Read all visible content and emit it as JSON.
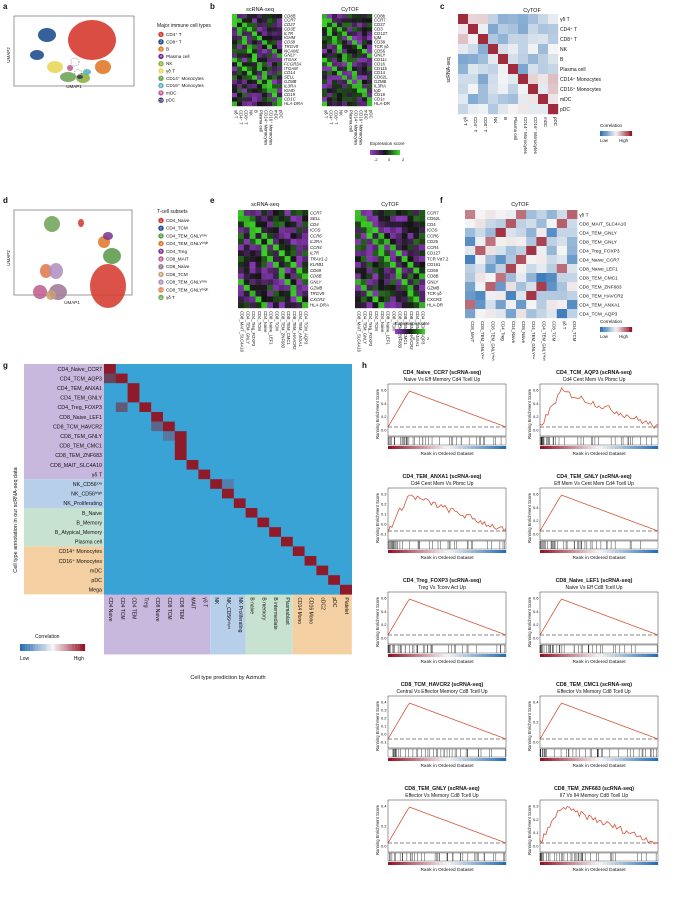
{
  "panels": {
    "a": {
      "letter": "a",
      "legend_title": "Major immune cell types",
      "items": [
        "CD4⁺ T",
        "CD8⁺ T",
        "B",
        "Plasma cell",
        "NK",
        "γδ T",
        "CD14⁺ Monocytes",
        "CD16⁺ Monocytes",
        "mDC",
        "pDC"
      ],
      "colors": [
        "#d63a2f",
        "#1f4f8f",
        "#e0792a",
        "#7a2f8a",
        "#8fb23c",
        "#e8d85a",
        "#6fa55a",
        "#5ab0c0",
        "#c06090",
        "#3a3a7a"
      ],
      "xaxis": "UMAP1",
      "yaxis": "UMAP2"
    },
    "b": {
      "letter": "b",
      "title_left": "scRNA-seq",
      "title_right": "CyTOF",
      "rna_markers": [
        "CD8B",
        "CCR7",
        "CD27",
        "CD3E",
        "IL7R",
        "IGHM",
        "CD38",
        "TRGV9",
        "NCAM1",
        "GNLY",
        "ITGAX",
        "FCGR3A",
        "ITGAM",
        "CD14",
        "SELL",
        "GZMB",
        "IL3RA",
        "IGHD",
        "CD19",
        "CD1C",
        "HLA-DRA"
      ],
      "cytof_markers": [
        "CD8b",
        "CCR7",
        "CD27",
        "CD3",
        "CD127",
        "IgM",
        "CD38",
        "TCR γδ",
        "CD56",
        "GNLY",
        "CD11c",
        "CD16",
        "CD11b",
        "CD14",
        "CD62L",
        "GZMB",
        "IL3RA",
        "IgD",
        "CD19",
        "CD1c",
        "HLA-DR"
      ],
      "columns": [
        "γδ T",
        "CD4⁺ T",
        "CD8⁺ T",
        "NK",
        "B",
        "Plasma cell",
        "CD14⁺ Monocytes",
        "CD16⁺ Monocytes",
        "mDC",
        "pDC"
      ],
      "scale_title": "Expression score",
      "scale_ticks": [
        "2",
        "0",
        "-2"
      ]
    },
    "c": {
      "letter": "c",
      "top": "CyTOF",
      "side": "scRNA-seq",
      "rows": [
        "γδ T",
        "CD4⁺ T",
        "CD8⁺ T",
        "NK",
        "B",
        "Plasma cell",
        "CD14⁺ Monocytes",
        "CD16⁺ Monocytes",
        "mDC",
        "pDC"
      ],
      "cols": [
        "γδ T",
        "CD4⁺ T",
        "CD8⁺ T",
        "NK",
        "B",
        "Plasma cell",
        "CD14⁺ Monocytes",
        "CD16⁺ Monocytes",
        "mDC",
        "pDC"
      ],
      "scale_title": "Correlation",
      "low": "Low",
      "high": "High"
    },
    "d": {
      "letter": "d",
      "legend_title": "T-cell subsets",
      "items": [
        "CD4_Naive",
        "CD4_TCM",
        "CD4_TEM_GNLYˡᵒʷ",
        "CD4_TEM_GNLYʰⁱᵍʰ",
        "CD4_Treg",
        "CD8_MAIT",
        "CD8_Naive",
        "CD8_TCM",
        "CD8_TEM_GNLYˡᵒʷ",
        "CD8_TEM_GNLYʰⁱᵍʰ",
        "γδ T"
      ],
      "colors": [
        "#d63a2f",
        "#1f4f8f",
        "#5a9a4a",
        "#e0792a",
        "#7a3a8a",
        "#c06090",
        "#a07a9a",
        "#c8a070",
        "#b08fc0",
        "#e07a4a",
        "#6fa55a"
      ],
      "xaxis": "UMAP1",
      "yaxis": "UMAP2"
    },
    "e": {
      "letter": "e",
      "title_left": "scRNA-seq",
      "title_right": "CyTOF",
      "rna_markers": [
        "CCR7",
        "SELL",
        "CD4",
        "ICOS",
        "CCR6",
        "IL2RA",
        "CCR4",
        "IL7R",
        "TRAV1-2",
        "KLRB1",
        "CD69",
        "CD8B",
        "GNLY",
        "GZMB",
        "TRGV9",
        "CXCR3",
        "HLA-DRA"
      ],
      "cytof_markers": [
        "CCR7",
        "CD62L",
        "CD4",
        "ICOS",
        "CCR6",
        "CD25",
        "CCR4",
        "CD127",
        "TCR Vα7.2",
        "CD161",
        "CD69",
        "CD8B",
        "GNLY",
        "GZMB",
        "TCR γδ",
        "CXCR3",
        "HLA-DR"
      ],
      "columns": [
        "CD8_MAIT_SLC4A10",
        "CD4_TEM_GNLY",
        "CD4_Treg_FOXP3",
        "CD4_TCM",
        "CD4_Naive",
        "CD8_Naive_LEF1",
        "CD8_TCM",
        "CD8_TEM_ZNF683",
        "CD8_TEM_CMC1",
        "CD8_TEM_HAVCR2",
        "CD4_TEM_ANXA1",
        "CD4_TCM_AQP3"
      ],
      "scale_title": "Expression score",
      "scale_ticks": [
        "2",
        "0",
        "-2"
      ]
    },
    "f": {
      "letter": "f",
      "top": "CyTOF",
      "rows": [
        "γδ T",
        "CD8_MAIT_SLC4A10",
        "CD4_TEM_GNLY",
        "CD8_TEM_GNLY",
        "CD4_Treg_FOXP3",
        "CD4_Naive_CCR7",
        "CD8_Naive_LEF1",
        "CD8_TEM_CMC1",
        "CD8_TEM_ZNF683",
        "CD8_TEM_HAVCR2",
        "CD4_TEM_ANXA1",
        "CD4_TCM_AQP3"
      ],
      "cols": [
        "CD8_MAIT",
        "CD8_TEM_GNLYˡᵒʷ",
        "CD8_TEM_GNLYʰⁱᵍʰ",
        "CD4_Treg",
        "CD4_Naive",
        "CD8_Naive",
        "CD4_TEM_GNLYˡᵒʷ",
        "CD4_TEM_GNLYʰⁱᵍʰ",
        "CD8_TCM",
        "γδ T",
        "CD4_TCM"
      ],
      "scale_title": "Correlation",
      "low": "Low",
      "high": "High"
    },
    "g": {
      "letter": "g",
      "yaxis": "Cell type annotation in our scRNA-seq data",
      "xaxis": "Cell type prediction by Azimuth",
      "rows": [
        "CD4_Naive_CCR7",
        "CD4_TCM_AQP3",
        "CD4_TEM_ANXA1",
        "CD4_TEM_GNLY",
        "CD4_Treg_FOXP3",
        "CD8_Naive_LEF1",
        "CD8_TCM_HAVCR2",
        "CD8_TEM_GNLY",
        "CD8_TEM_CMC1",
        "CD8_TEM_ZNF683",
        "CD8_MAIT_SLC4A10",
        "γδ T",
        "NK_CD56ˡᵒʷ",
        "NK_CD56ʰⁱᵍʰ",
        "NK_Proliferating",
        "B_Naive",
        "B_Memory",
        "B_Atypical_Memory",
        "Plasma cell",
        "CD14⁺ Monocytes",
        "CD16⁺ Monocytes",
        "mDC",
        "pDC",
        "Mega"
      ],
      "cols": [
        "CD4 Naive",
        "CD4 TCM",
        "CD4 TEM",
        "Treg",
        "CD8 Naive",
        "CD8 TCM",
        "CD8 TEM",
        "MAIT",
        "γδ T",
        "NK",
        "NK_CD56ᵇʳⁱᵍʰᵗ",
        "NK Proliferating",
        "B naive",
        "B memory",
        "B intermediate",
        "Plasmablast",
        "CD14 Mono",
        "CD16 Mono",
        "cDC2",
        "pDC",
        "Platelet"
      ],
      "scale_title": "Correlation",
      "low": "Low",
      "high": "High",
      "group_colors": [
        "#c9b8dd",
        "#b7cfe8",
        "#c8e2d2",
        "#f3cfa2"
      ]
    },
    "h": {
      "letter": "h",
      "ylabel": "Running Enrichment Score",
      "xlabel": "Rank in Ordered Dataset",
      "plots": [
        {
          "title": "CD4_Naive_CCR7 (scRNA-seq)",
          "subtitle": "Naive Vs Eff Memory Cd4 Tcell Up",
          "yticks": [
            "0.6",
            "0.4",
            "0.2",
            "0.0"
          ],
          "type": "smooth"
        },
        {
          "title": "CD4_TCM_AQP3 (scRNA-seq)",
          "subtitle": "Cd4 Cent Mem Vs Pbmc Up",
          "yticks": [
            "0.6",
            "0.4",
            "0.2",
            "0.0"
          ],
          "type": "noisy"
        },
        {
          "title": "CD4_TEM_ANXA1 (scRNA-seq)",
          "subtitle": "Cd4 Cent Mem Vs Pbmc Up",
          "yticks": [
            "0.3",
            "0.2",
            "0.1",
            "0.0",
            "-0.1"
          ],
          "type": "noisy"
        },
        {
          "title": "CD4_TEM_GNLY (scRNA-seq)",
          "subtitle": "Eff Mem Vs Cent Mem Cd4 Tcell Up",
          "yticks": [
            "0.6",
            "0.4",
            "0.2",
            "0.0"
          ],
          "type": "smooth"
        },
        {
          "title": "CD4_Treg_FOXP3 (scRNA-seq)",
          "subtitle": "Treg Vs Tconv Act Up",
          "yticks": [
            "0.6",
            "0.4",
            "0.2",
            "0.0"
          ],
          "type": "smooth"
        },
        {
          "title": "CD8_Naive_LEF1 (scRNA-seq)",
          "subtitle": "Naive Vs Eff Cd8 Tcell Up",
          "yticks": [
            "0.6",
            "0.4",
            "0.2",
            "0.0"
          ],
          "type": "smooth"
        },
        {
          "title": "CD8_TCM_HAVCR2 (scRNA-seq)",
          "subtitle": "Central Vs Effector Memory Cd8 Tcell Up",
          "yticks": [
            "0.4",
            "0.3",
            "0.2",
            "0.1",
            "0.0",
            "-0.1"
          ],
          "type": "smooth"
        },
        {
          "title": "CD8_TEM_CMC1 (scRNA-seq)",
          "subtitle": "Effector Vs Memory Cd8 Tcell Up",
          "yticks": [
            "0.4",
            "0.2",
            "0.0"
          ],
          "type": "smooth"
        },
        {
          "title": "CD8_TEM_GNLY (scRNA-seq)",
          "subtitle": "Effector Vs Memory Cd8 Tcell Up",
          "yticks": [
            "0.4",
            "0.2",
            "0.0"
          ],
          "type": "smooth"
        },
        {
          "title": "CD8_TEM_ZNF683 (scRNA-seq)",
          "subtitle": "Il7 Vs Il4 Memory Cd8 Tcell Up",
          "yticks": [
            "0.3",
            "0.2",
            "0.1",
            "0.0"
          ],
          "type": "noisy"
        }
      ]
    }
  }
}
